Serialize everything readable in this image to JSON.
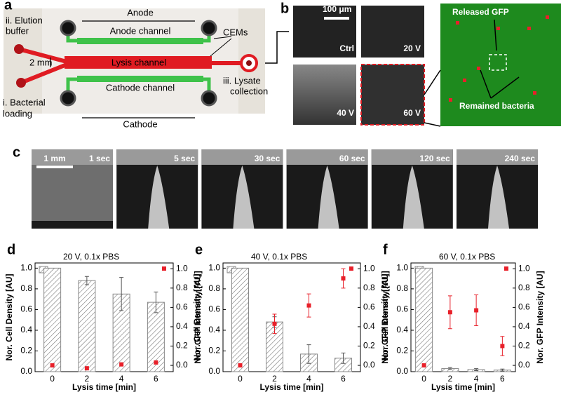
{
  "panel_a": {
    "label": "a",
    "anode": "Anode",
    "anode_channel": "Anode channel",
    "cems": "CEMs",
    "elution": [
      "ii. Elution",
      "buffer"
    ],
    "scale": "2 mm",
    "lysis_channel": "Lysis channel",
    "lysate": [
      "iii. Lysate",
      "collection"
    ],
    "loading": [
      "i. Bacterial",
      "loading"
    ],
    "cathode_channel": "Cathode channel",
    "cathode": "Cathode"
  },
  "panel_b": {
    "label": "b",
    "scale": "100 μm",
    "images": [
      "Ctrl",
      "20 V",
      "40 V",
      "60 V"
    ],
    "released": "Released GFP",
    "remained": "Remained bacteria"
  },
  "panel_c": {
    "label": "c",
    "scale": "1 mm",
    "times": [
      "1 sec",
      "5 sec",
      "30 sec",
      "60 sec",
      "120 sec",
      "240 sec"
    ]
  },
  "chart_data": [
    {
      "type": "bar",
      "panel": "d",
      "title": "20 V, 0.1x PBS",
      "xlabel": "Lysis time [min]",
      "ylabel": "Nor. Cell Density [AU]",
      "y2label": "Nor. GFP Intensity [AU]",
      "categories": [
        "0",
        "2",
        "4",
        "6"
      ],
      "series": [
        {
          "color": "#888888",
          "values": [
            1.0,
            0.88,
            0.75,
            0.67
          ],
          "errors": [
            null,
            0.04,
            0.16,
            0.1
          ]
        },
        {
          "axis": "y2",
          "color": "#e8202a",
          "values": [
            0.0,
            -0.03,
            0.01,
            0.03
          ]
        }
      ],
      "ylim": [
        0,
        1.05
      ],
      "yticks": [
        {
          "value": 0,
          "label": "0.0"
        },
        {
          "value": 0.2,
          "label": "0.2"
        },
        {
          "value": 0.4,
          "label": "0.4"
        },
        {
          "value": 0.6,
          "label": "0.6"
        },
        {
          "value": 0.8,
          "label": "0.8"
        },
        {
          "value": 1,
          "label": "1.0"
        }
      ],
      "y2lim": [
        -0.065,
        1.06
      ],
      "y2ticks": [
        {
          "value": 0,
          "label": "0.0"
        },
        {
          "value": 0.2,
          "label": "0.2"
        },
        {
          "value": 0.4,
          "label": "0.4"
        },
        {
          "value": 0.6,
          "label": "0.6"
        },
        {
          "value": 0.8,
          "label": "0.8"
        },
        {
          "value": 1,
          "label": "1.0"
        }
      ]
    },
    {
      "type": "bar",
      "panel": "e",
      "title": "40 V, 0.1x PBS",
      "xlabel": "Lysis time [min]",
      "ylabel": "Nor. Cell Density [AU]",
      "y2label": "Nor. GFP Intensity [AU]",
      "categories": [
        "0",
        "2",
        "4",
        "6"
      ],
      "series": [
        {
          "color": "#888888",
          "values": [
            1.0,
            0.48,
            0.17,
            0.13
          ],
          "errors": [
            null,
            0.05,
            0.09,
            0.05
          ]
        },
        {
          "axis": "y2",
          "color": "#e8202a",
          "values": [
            0.0,
            0.43,
            0.62,
            0.9
          ],
          "errors": [
            null,
            0.1,
            0.12,
            0.1
          ]
        }
      ],
      "ylim": [
        0,
        1.05
      ],
      "yticks": [
        {
          "value": 0,
          "label": "0.0"
        },
        {
          "value": 0.2,
          "label": "0.2"
        },
        {
          "value": 0.4,
          "label": "0.4"
        },
        {
          "value": 0.6,
          "label": "0.6"
        },
        {
          "value": 0.8,
          "label": "0.8"
        },
        {
          "value": 1,
          "label": "1.0"
        }
      ],
      "y2lim": [
        -0.065,
        1.06
      ],
      "y2ticks": [
        {
          "value": 0,
          "label": "0.0"
        },
        {
          "value": 0.2,
          "label": "0.2"
        },
        {
          "value": 0.4,
          "label": "0.4"
        },
        {
          "value": 0.6,
          "label": "0.6"
        },
        {
          "value": 0.8,
          "label": "0.8"
        },
        {
          "value": 1,
          "label": "1.0"
        }
      ]
    },
    {
      "type": "bar",
      "panel": "f",
      "title": "60 V, 0.1x PBS",
      "xlabel": "Lysis time [min]",
      "ylabel": "Nor. Cell Density [AU]",
      "y2label": "Nor. GFP Intensity [AU]",
      "categories": [
        "0",
        "2",
        "4",
        "6"
      ],
      "series": [
        {
          "color": "#888888",
          "values": [
            1.0,
            0.03,
            0.02,
            0.015
          ],
          "errors": [
            null,
            0.01,
            0.01,
            0.01
          ]
        },
        {
          "axis": "y2",
          "color": "#e8202a",
          "values": [
            0.0,
            0.55,
            0.57,
            0.2
          ],
          "errors": [
            null,
            0.17,
            0.16,
            0.1
          ]
        }
      ],
      "ylim": [
        0,
        1.05
      ],
      "yticks": [
        {
          "value": 0,
          "label": "0.0"
        },
        {
          "value": 0.2,
          "label": "0.2"
        },
        {
          "value": 0.4,
          "label": "0.4"
        },
        {
          "value": 0.6,
          "label": "0.6"
        },
        {
          "value": 0.8,
          "label": "0.8"
        },
        {
          "value": 1,
          "label": "1.0"
        }
      ],
      "y2lim": [
        -0.065,
        1.06
      ],
      "y2ticks": [
        {
          "value": 0,
          "label": "0.0"
        },
        {
          "value": 0.2,
          "label": "0.2"
        },
        {
          "value": 0.4,
          "label": "0.4"
        },
        {
          "value": 0.6,
          "label": "0.6"
        },
        {
          "value": 0.8,
          "label": "0.8"
        },
        {
          "value": 1,
          "label": "1.0"
        }
      ]
    }
  ]
}
